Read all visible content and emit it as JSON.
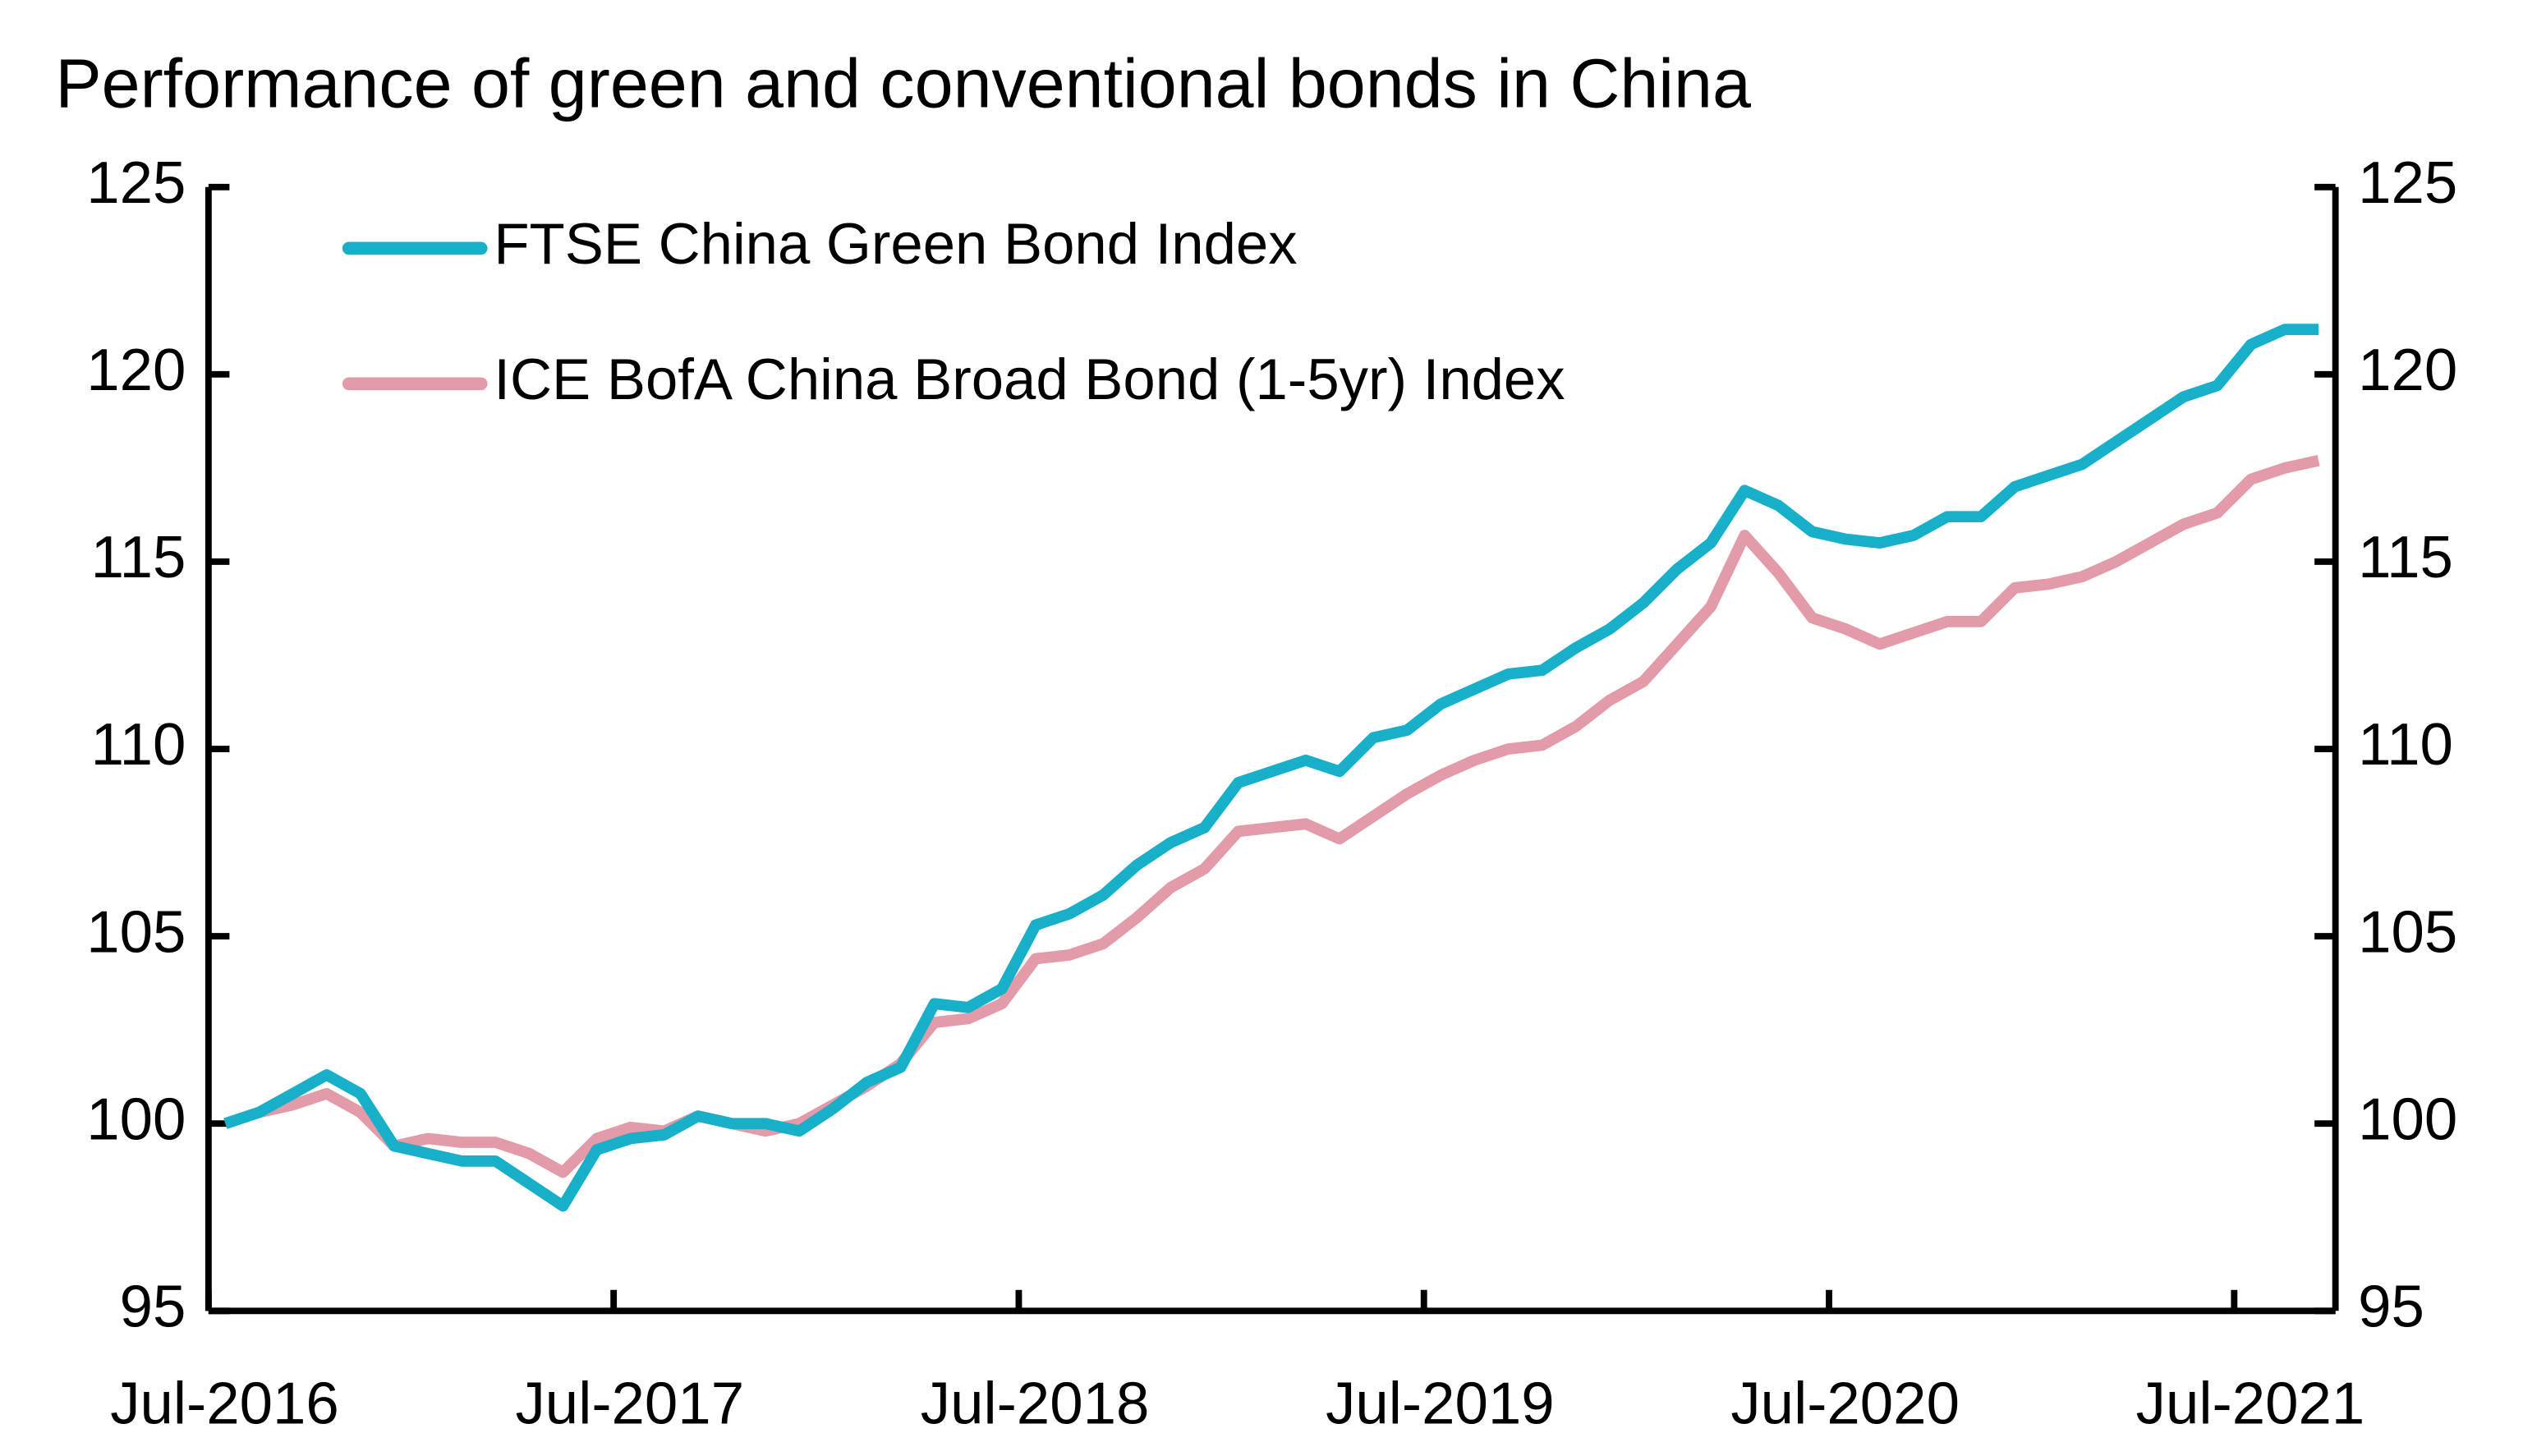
{
  "chart_data": {
    "type": "line",
    "title": "Performance of green and conventional bonds in China",
    "categories": [
      "Jul-2016",
      null,
      null,
      null,
      null,
      null,
      null,
      null,
      null,
      null,
      null,
      null,
      "Jul-2017",
      null,
      null,
      null,
      null,
      null,
      null,
      null,
      null,
      null,
      null,
      null,
      "Jul-2018",
      null,
      null,
      null,
      null,
      null,
      null,
      null,
      null,
      null,
      null,
      null,
      "Jul-2019",
      null,
      null,
      null,
      null,
      null,
      null,
      null,
      null,
      null,
      null,
      null,
      "Jul-2020",
      null,
      null,
      null,
      null,
      null,
      null,
      null,
      null,
      null,
      null,
      null,
      "Jul-2021",
      null,
      null
    ],
    "series": [
      {
        "name": "FTSE China Green Bond Index",
        "color": "#18b0c8",
        "values": [
          100,
          100.3,
          100.8,
          101.3,
          100.8,
          99.4,
          99.2,
          99.0,
          99.0,
          98.4,
          97.8,
          99.3,
          99.6,
          99.7,
          100.2,
          100.0,
          100.0,
          99.8,
          100.4,
          101.1,
          101.5,
          103.2,
          103.1,
          103.6,
          105.3,
          105.6,
          106.1,
          106.9,
          107.5,
          107.9,
          109.1,
          109.4,
          109.7,
          109.4,
          110.3,
          110.5,
          111.2,
          111.6,
          112.0,
          112.1,
          112.7,
          113.2,
          113.9,
          114.8,
          115.5,
          116.9,
          116.5,
          115.8,
          115.6,
          115.5,
          115.7,
          116.2,
          116.2,
          117.0,
          117.3,
          117.6,
          118.2,
          118.8,
          119.4,
          119.7,
          120.8,
          121.2,
          121.2
        ]
      },
      {
        "name": "ICE BofA China Broad Bond (1-5yr) Index",
        "color": "#e39aa9",
        "values": [
          100,
          100.3,
          100.5,
          100.8,
          100.3,
          99.4,
          99.6,
          99.5,
          99.5,
          99.2,
          98.7,
          99.6,
          99.9,
          99.8,
          100.2,
          100.0,
          99.8,
          100.0,
          100.5,
          101.0,
          101.6,
          102.7,
          102.8,
          103.2,
          104.4,
          104.5,
          104.8,
          105.5,
          106.3,
          106.8,
          107.8,
          107.9,
          108.0,
          107.6,
          108.2,
          108.8,
          109.3,
          109.7,
          110.0,
          110.1,
          110.6,
          111.3,
          111.8,
          112.8,
          113.8,
          115.7,
          114.7,
          113.5,
          113.2,
          112.8,
          113.1,
          113.4,
          113.4,
          114.3,
          114.4,
          114.6,
          115.0,
          115.5,
          116.0,
          116.3,
          117.2,
          117.5,
          117.7
        ]
      }
    ],
    "ylim": [
      95,
      125
    ],
    "yticks": [
      95,
      100,
      105,
      110,
      115,
      120,
      125
    ],
    "y2lim": [
      95,
      125
    ],
    "y2ticks": [
      95,
      100,
      105,
      110,
      115,
      120,
      125
    ],
    "grid": false
  }
}
